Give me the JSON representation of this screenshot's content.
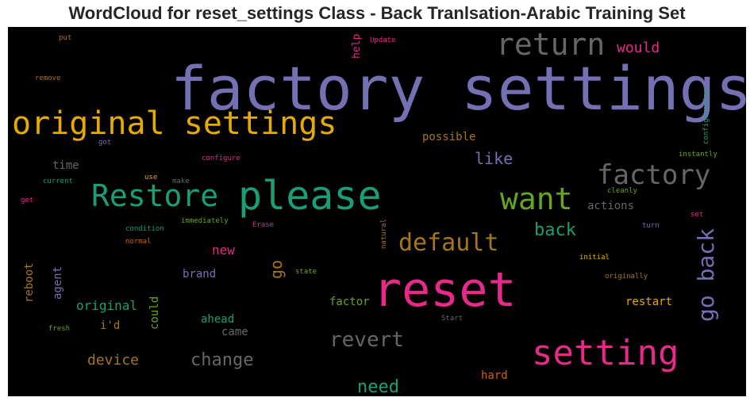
{
  "chart_data": {
    "type": "wordcloud",
    "title": "WordCloud for reset_settings Class - Back Tranlsation-Arabic Training Set",
    "background": "#000000",
    "words": [
      {
        "text": "factory settings",
        "color": "#7570b3"
      },
      {
        "text": "reset",
        "color": "#e7298a"
      },
      {
        "text": "original settings",
        "color": "#e6ab02"
      },
      {
        "text": "please",
        "color": "#1b9e77"
      },
      {
        "text": "Restore",
        "color": "#1b9e77"
      },
      {
        "text": "setting",
        "color": "#e7298a"
      },
      {
        "text": "return",
        "color": "#666666"
      },
      {
        "text": "factory",
        "color": "#666666"
      },
      {
        "text": "want",
        "color": "#66a61e"
      },
      {
        "text": "default",
        "color": "#a6761d"
      },
      {
        "text": "go back",
        "color": "#7570b3"
      },
      {
        "text": "revert",
        "color": "#666666"
      },
      {
        "text": "back",
        "color": "#1b9e77"
      },
      {
        "text": "need",
        "color": "#1b9e77"
      },
      {
        "text": "change",
        "color": "#666666"
      },
      {
        "text": "go",
        "color": "#a6761d"
      },
      {
        "text": "like",
        "color": "#7570b3"
      },
      {
        "text": "would",
        "color": "#e7298a"
      },
      {
        "text": "device",
        "color": "#a6761d"
      },
      {
        "text": "original",
        "color": "#1b9e77"
      },
      {
        "text": "possible",
        "color": "#a6761d"
      },
      {
        "text": "time",
        "color": "#666666"
      },
      {
        "text": "new",
        "color": "#e7298a"
      },
      {
        "text": "brand",
        "color": "#7570b3"
      },
      {
        "text": "actions",
        "color": "#666666"
      },
      {
        "text": "ahead",
        "color": "#1b9e77"
      },
      {
        "text": "came",
        "color": "#666666"
      },
      {
        "text": "i'd",
        "color": "#a6761d"
      },
      {
        "text": "could",
        "color": "#66a61e"
      },
      {
        "text": "reboot",
        "color": "#a6761d"
      },
      {
        "text": "agent",
        "color": "#7570b3"
      },
      {
        "text": "help",
        "color": "#e7298a"
      },
      {
        "text": "factor",
        "color": "#66a61e"
      },
      {
        "text": "restart",
        "color": "#e6ab02"
      },
      {
        "text": "hard",
        "color": "#d95f02"
      },
      {
        "text": "Update",
        "color": "#e7298a"
      },
      {
        "text": "put",
        "color": "#a6761d"
      },
      {
        "text": "remove",
        "color": "#a6761d"
      },
      {
        "text": "got",
        "color": "#7570b3"
      },
      {
        "text": "configure",
        "color": "#e7298a"
      },
      {
        "text": "use",
        "color": "#e6ab02"
      },
      {
        "text": "make",
        "color": "#666666"
      },
      {
        "text": "current",
        "color": "#1b9e77"
      },
      {
        "text": "get",
        "color": "#e7298a"
      },
      {
        "text": "immediately",
        "color": "#66a61e"
      },
      {
        "text": "condition",
        "color": "#1b9e77"
      },
      {
        "text": "normal",
        "color": "#d95f02"
      },
      {
        "text": "Erase",
        "color": "#e7298a"
      },
      {
        "text": "natural",
        "color": "#a6761d"
      },
      {
        "text": "state",
        "color": "#66a61e"
      },
      {
        "text": "fresh",
        "color": "#66a61e"
      },
      {
        "text": "Start",
        "color": "#666666"
      },
      {
        "text": "initial",
        "color": "#e6ab02"
      },
      {
        "text": "originally",
        "color": "#a6761d"
      },
      {
        "text": "cleanly",
        "color": "#66a61e"
      },
      {
        "text": "turn",
        "color": "#7570b3"
      },
      {
        "text": "set",
        "color": "#e7298a"
      },
      {
        "text": "instantly",
        "color": "#66a61e"
      },
      {
        "text": "configuration",
        "color": "#1b9e77"
      }
    ]
  }
}
